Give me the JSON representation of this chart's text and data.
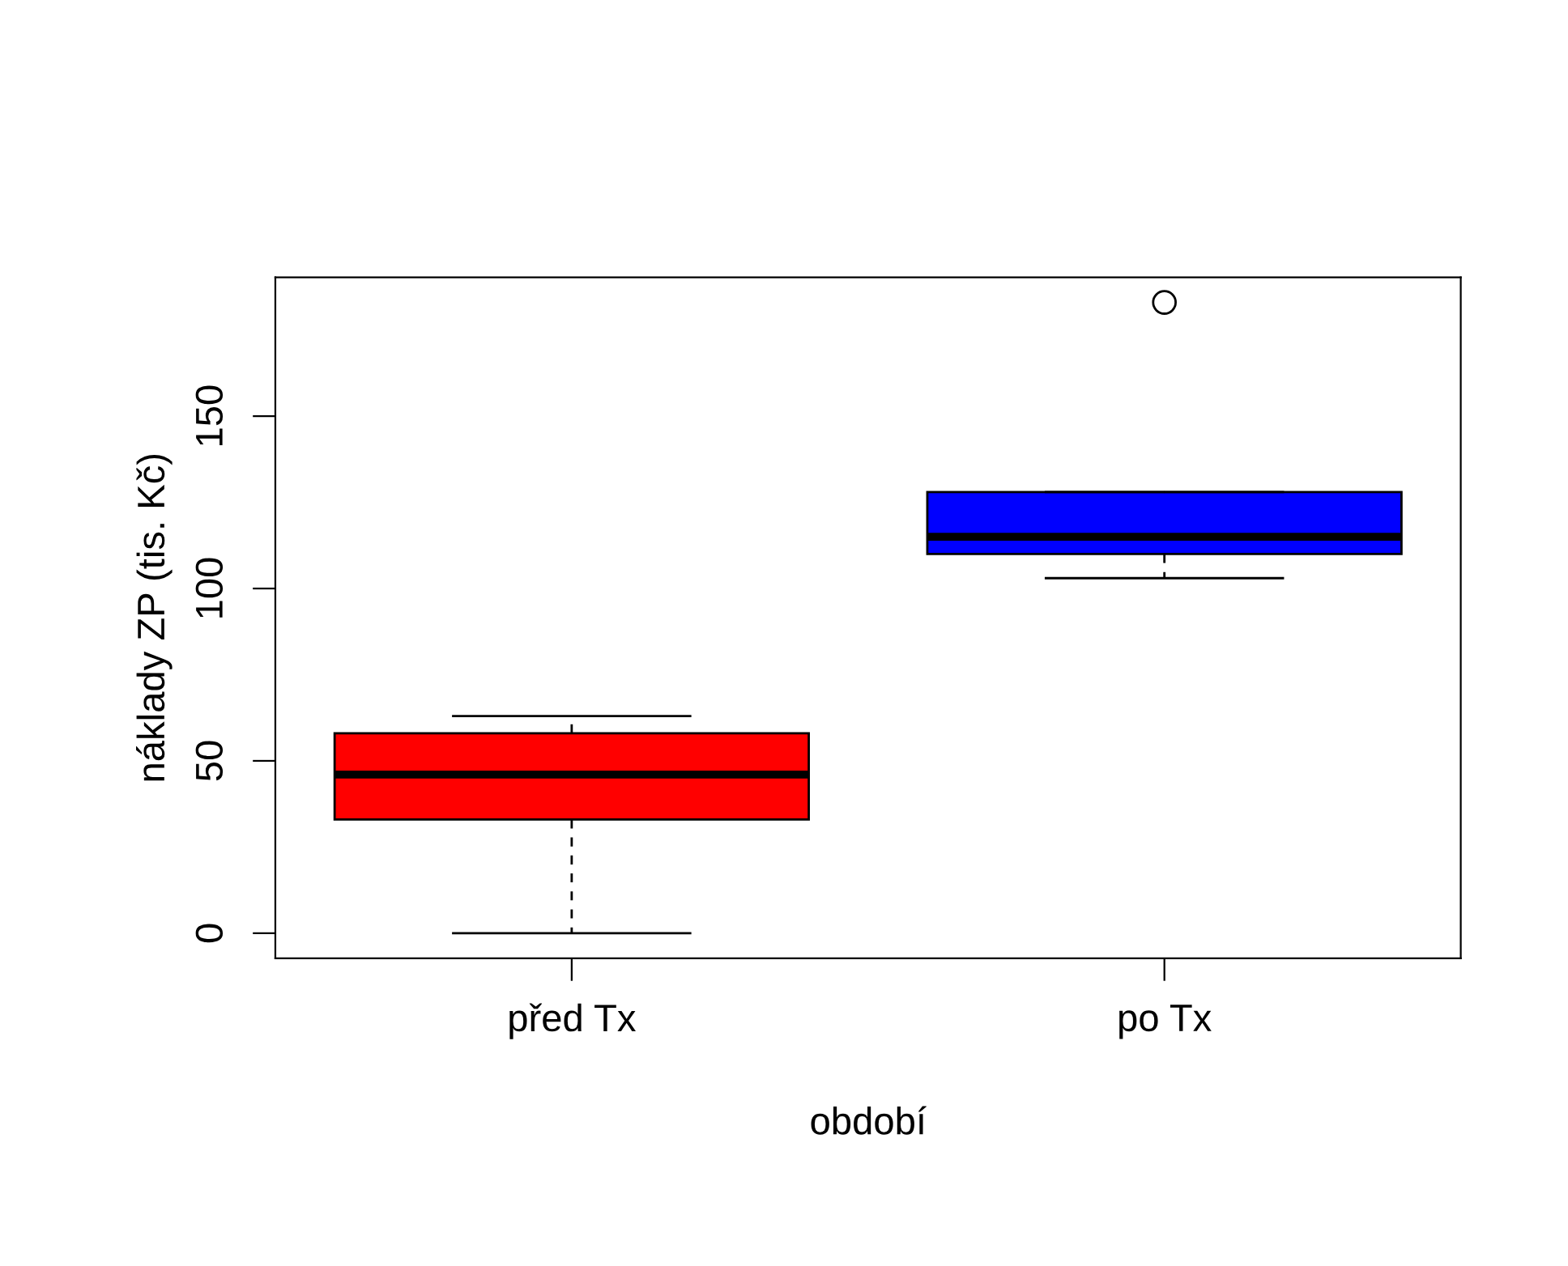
{
  "chart_data": {
    "type": "box",
    "xlabel": "období",
    "ylabel": "náklady ZP (tis. Kč)",
    "categories": [
      "před Tx",
      "po Tx"
    ],
    "colors": [
      "#ff0000",
      "#0000ff"
    ],
    "boxes": [
      {
        "low": 0,
        "q1": 33,
        "median": 46,
        "q3": 58,
        "high": 63
      },
      {
        "low": 103,
        "q1": 110,
        "median": 115,
        "q3": 128,
        "high": 128,
        "outliers": [
          183
        ]
      }
    ],
    "ylim": [
      -7.3,
      190.3
    ],
    "yticks": [
      0,
      50,
      100,
      150
    ]
  }
}
